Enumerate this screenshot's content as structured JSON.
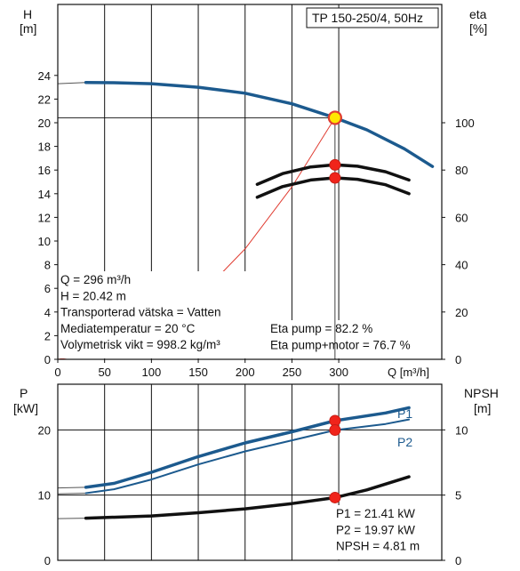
{
  "chart_data": [
    {
      "type": "line",
      "title": "TP 150-250/4, 50Hz",
      "left_axis": {
        "label": "H",
        "unit": "[m]",
        "ylim": [
          0,
          30
        ],
        "ticks": [
          0,
          2,
          4,
          6,
          8,
          10,
          12,
          14,
          16,
          18,
          20,
          22,
          24
        ]
      },
      "right_axis": {
        "label": "eta",
        "unit": "[%]",
        "ylim": [
          0,
          150
        ],
        "ticks": [
          0,
          20,
          40,
          60,
          80,
          100
        ]
      },
      "x_axis": {
        "label": "Q [m³/h]",
        "xlim": [
          0,
          410
        ],
        "ticks": [
          0,
          50,
          100,
          150,
          200,
          250,
          300
        ]
      },
      "grid": true,
      "series": [
        {
          "name": "",
          "axis": "left",
          "color": "#1c5a8e",
          "x": [
            30,
            60,
            100,
            150,
            200,
            250,
            296,
            330,
            370,
            400
          ],
          "y": [
            23.4,
            23.38,
            23.3,
            23.0,
            22.5,
            21.6,
            20.42,
            19.4,
            17.8,
            16.3
          ]
        },
        {
          "name": "",
          "axis": "left",
          "color": "#e03c31",
          "x": [
            0,
            50,
            100,
            150,
            200,
            250,
            296
          ],
          "y": [
            0,
            0.58,
            2.33,
            5.25,
            9.33,
            14.58,
            20.42
          ]
        },
        {
          "name": "Eta pump",
          "axis": "right",
          "color": "#111111",
          "x": [
            213,
            240,
            270,
            296,
            320,
            350,
            375
          ],
          "y": [
            74,
            78.5,
            81.3,
            82.2,
            81.6,
            79.3,
            75.8
          ]
        },
        {
          "name": "Eta pump+motor",
          "axis": "right",
          "color": "#111111",
          "x": [
            213,
            240,
            270,
            296,
            320,
            350,
            375
          ],
          "y": [
            68.5,
            73.0,
            75.8,
            76.7,
            76.1,
            73.8,
            70.0
          ]
        }
      ],
      "operating_point": {
        "x": 296,
        "y": 20.42
      }
    },
    {
      "type": "line",
      "left_axis": {
        "label": "P",
        "unit": "[kW]",
        "ylim": [
          0,
          27
        ],
        "ticks": [
          0,
          10,
          20
        ]
      },
      "right_axis": {
        "label": "NPSH",
        "unit": "[m]",
        "ylim": [
          0,
          13.5
        ],
        "ticks": [
          0,
          5,
          10
        ]
      },
      "x_axis": {
        "xlim": [
          0,
          410
        ]
      },
      "grid": true,
      "series": [
        {
          "name": "P1",
          "axis": "left",
          "color": "#1c5a8e",
          "x": [
            30,
            60,
            100,
            150,
            200,
            250,
            296,
            350,
            375
          ],
          "y": [
            11.2,
            11.8,
            13.5,
            15.9,
            18.0,
            19.7,
            21.41,
            22.6,
            23.4
          ]
        },
        {
          "name": "P2",
          "axis": "left",
          "color": "#1c5a8e",
          "x": [
            30,
            60,
            100,
            150,
            200,
            250,
            296,
            350,
            375
          ],
          "y": [
            10.3,
            10.9,
            12.4,
            14.7,
            16.7,
            18.4,
            19.97,
            20.9,
            21.6
          ]
        },
        {
          "name": "NPSH",
          "axis": "right",
          "color": "#111111",
          "x": [
            30,
            100,
            150,
            200,
            250,
            296,
            330,
            375
          ],
          "y": [
            3.23,
            3.4,
            3.65,
            3.95,
            4.35,
            4.81,
            5.4,
            6.4
          ]
        }
      ],
      "operating_point": {
        "x": 296
      }
    }
  ],
  "info": {
    "left": [
      "Q = 296 m³/h",
      "H = 20.42 m",
      "Transporterad vätska = Vatten",
      "Mediatemperatur = 20 °C",
      "Volymetrisk vikt = 998.2 kg/m³"
    ],
    "right": [
      "Eta pump = 82.2 %",
      "Eta pump+motor = 76.7 %"
    ],
    "bottom": [
      "P1 = 21.41 kW",
      "P2 = 19.97 kW",
      "NPSH = 4.81 m"
    ]
  }
}
